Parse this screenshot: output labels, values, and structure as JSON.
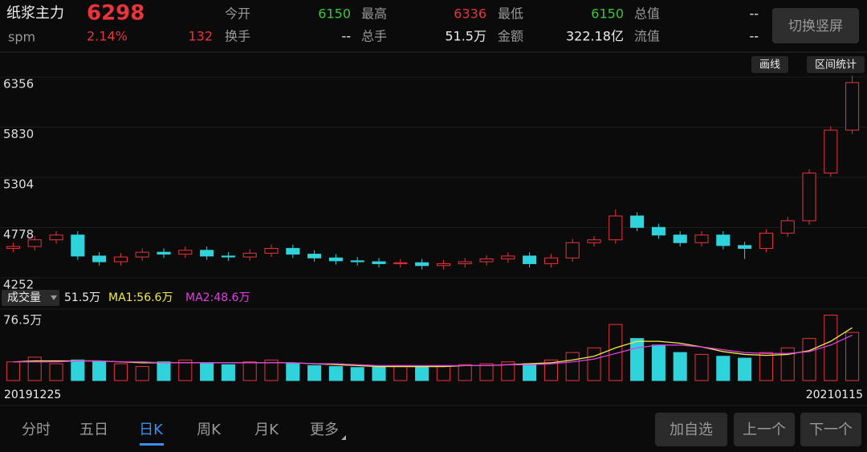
{
  "header": {
    "name": "纸浆主力",
    "price": "6298",
    "code": "spm",
    "change_pct": "2.14%",
    "change": "132",
    "stats": [
      {
        "label": "今开",
        "value": "6150"
      },
      {
        "label": "最高",
        "value": "6336"
      },
      {
        "label": "最低",
        "value": "6150"
      },
      {
        "label": "总值",
        "value": "--"
      },
      {
        "label": "换手",
        "value": "--"
      },
      {
        "label": "总手",
        "value": "51.5万"
      },
      {
        "label": "金额",
        "value": "322.18亿"
      },
      {
        "label": "流值",
        "value": "--"
      }
    ],
    "rotate_button": "切换竖屏"
  },
  "toolbar": [
    "画线",
    "区间统计"
  ],
  "chart_data": [
    {
      "type": "candlestick",
      "up_color": "#e8353b",
      "down_color": "#2fd3dc",
      "ylim": [
        4252,
        6356
      ],
      "yticks": [
        4252,
        4778,
        5304,
        5830,
        6356
      ],
      "grid": true,
      "open": [
        4560,
        4580,
        4650,
        4700,
        4480,
        4420,
        4470,
        4520,
        4500,
        4540,
        4480,
        4470,
        4510,
        4560,
        4500,
        4460,
        4430,
        4420,
        4400,
        4410,
        4380,
        4400,
        4420,
        4450,
        4480,
        4400,
        4460,
        4620,
        4650,
        4900,
        4780,
        4700,
        4620,
        4700,
        4590,
        4560,
        4720,
        4850,
        5350,
        5800
      ],
      "high": [
        4620,
        4690,
        4740,
        4740,
        4520,
        4510,
        4560,
        4560,
        4580,
        4580,
        4520,
        4550,
        4600,
        4600,
        4540,
        4500,
        4470,
        4460,
        4450,
        4450,
        4440,
        4460,
        4490,
        4520,
        4520,
        4500,
        4660,
        4690,
        4970,
        4940,
        4820,
        4740,
        4740,
        4740,
        4630,
        4760,
        4890,
        5390,
        5840,
        6370
      ],
      "low": [
        4520,
        4540,
        4610,
        4440,
        4380,
        4380,
        4430,
        4460,
        4460,
        4440,
        4430,
        4430,
        4470,
        4460,
        4420,
        4390,
        4380,
        4360,
        4360,
        4340,
        4340,
        4360,
        4380,
        4410,
        4360,
        4360,
        4420,
        4580,
        4610,
        4740,
        4660,
        4580,
        4580,
        4550,
        4450,
        4520,
        4680,
        4810,
        5310,
        5760
      ],
      "close": [
        4580,
        4650,
        4700,
        4480,
        4420,
        4470,
        4520,
        4500,
        4540,
        4480,
        4470,
        4510,
        4560,
        4500,
        4460,
        4430,
        4420,
        4400,
        4410,
        4380,
        4400,
        4420,
        4450,
        4480,
        4400,
        4460,
        4620,
        4650,
        4900,
        4780,
        4700,
        4620,
        4700,
        4590,
        4560,
        4720,
        4850,
        5350,
        5800,
        6298
      ]
    },
    {
      "type": "bar",
      "title": "成交量",
      "current": "51.5万",
      "ylim": [
        0,
        76.5
      ],
      "yticks": [
        {
          "value": 76.5,
          "label": "76.5万"
        }
      ],
      "x_labels": [
        "20191225",
        "20210115"
      ],
      "values": [
        20,
        25,
        18,
        22,
        20,
        18,
        15,
        20,
        22,
        18,
        17,
        20,
        22,
        18,
        16,
        15,
        14,
        15,
        16,
        15,
        16,
        17,
        18,
        20,
        18,
        22,
        30,
        35,
        60,
        45,
        38,
        30,
        28,
        26,
        24,
        30,
        35,
        45,
        70,
        51.5
      ],
      "series": [
        {
          "name": "MA1",
          "label": "MA1:56.6万",
          "color": "#f2e94e",
          "values": [
            20,
            21,
            21,
            21,
            21,
            20,
            19,
            19,
            19,
            19,
            19,
            19,
            19,
            19,
            18,
            17,
            16,
            15,
            15,
            15,
            15,
            16,
            16,
            17,
            18,
            19,
            22,
            26,
            35,
            42,
            42,
            40,
            36,
            31,
            28,
            27,
            28,
            32,
            42,
            56.6
          ]
        },
        {
          "name": "MA2",
          "label": "MA2:48.6万",
          "color": "#e040e0",
          "values": [
            20,
            20,
            20,
            21,
            21,
            20,
            20,
            19,
            19,
            19,
            19,
            19,
            19,
            19,
            18,
            18,
            17,
            16,
            16,
            16,
            16,
            16,
            16,
            17,
            17,
            18,
            20,
            23,
            29,
            35,
            38,
            38,
            36,
            33,
            30,
            29,
            29,
            31,
            38,
            48.6
          ]
        }
      ]
    }
  ],
  "tabs": [
    "分时",
    "五日",
    "日K",
    "周K",
    "月K",
    "更多"
  ],
  "buttons": [
    "加自选",
    "上一个",
    "下一个"
  ]
}
